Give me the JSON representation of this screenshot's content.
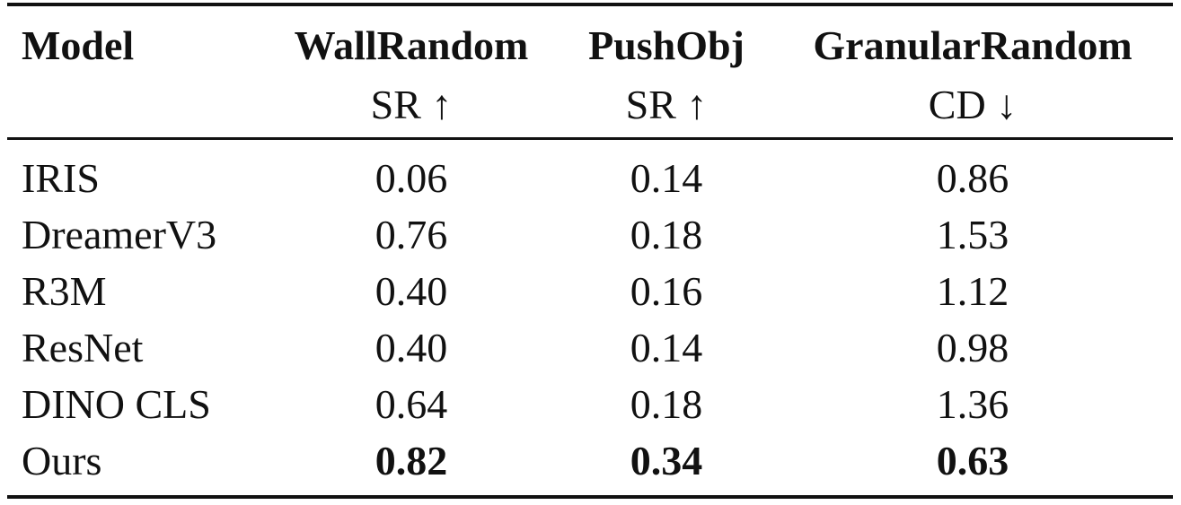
{
  "table": {
    "header": {
      "model": "Model",
      "columns": [
        {
          "name": "WallRandom",
          "metric": "SR ↑"
        },
        {
          "name": "PushObj",
          "metric": "SR ↑"
        },
        {
          "name": "GranularRandom",
          "metric": "CD ↓"
        }
      ]
    },
    "rows": [
      {
        "model": "IRIS",
        "values": [
          "0.06",
          "0.14",
          "0.86"
        ]
      },
      {
        "model": "DreamerV3",
        "values": [
          "0.76",
          "0.18",
          "1.53"
        ]
      },
      {
        "model": "R3M",
        "values": [
          "0.40",
          "0.16",
          "1.12"
        ]
      },
      {
        "model": "ResNet",
        "values": [
          "0.40",
          "0.14",
          "0.98"
        ]
      },
      {
        "model": "DINO CLS",
        "values": [
          "0.64",
          "0.18",
          "1.36"
        ]
      },
      {
        "model": "Ours",
        "values": [
          "0.82",
          "0.34",
          "0.63"
        ],
        "bold": true
      }
    ]
  }
}
